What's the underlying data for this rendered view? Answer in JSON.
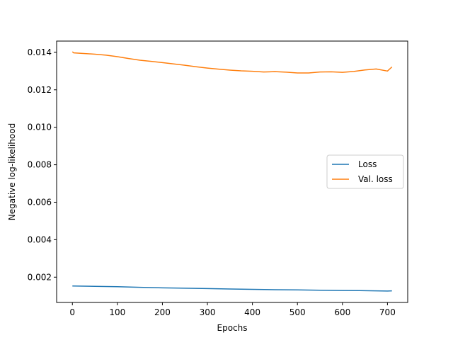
{
  "chart_data": {
    "type": "line",
    "title": "",
    "xlabel": "Epochs",
    "ylabel": "Negative log-likelihood",
    "xlim": [
      -35,
      745
    ],
    "ylim": [
      0.00065,
      0.0146
    ],
    "x_ticks": [
      0,
      100,
      200,
      300,
      400,
      500,
      600,
      700
    ],
    "x_tick_labels": [
      "0",
      "100",
      "200",
      "300",
      "400",
      "500",
      "600",
      "700"
    ],
    "y_ticks": [
      0.002,
      0.004,
      0.006,
      0.008,
      0.01,
      0.012,
      0.014
    ],
    "y_tick_labels": [
      "0.002",
      "0.004",
      "0.006",
      "0.008",
      "0.010",
      "0.012",
      "0.014"
    ],
    "grid": false,
    "legend_position": "center-right",
    "series": [
      {
        "name": "Loss",
        "color": "#1f77b4",
        "x": [
          0,
          50,
          100,
          150,
          200,
          250,
          300,
          350,
          400,
          450,
          500,
          550,
          600,
          650,
          700,
          710
        ],
        "y": [
          0.00153,
          0.00151,
          0.00149,
          0.00146,
          0.00143,
          0.00141,
          0.00139,
          0.00137,
          0.00135,
          0.00133,
          0.00132,
          0.0013,
          0.00129,
          0.00128,
          0.00126,
          0.00127
        ]
      },
      {
        "name": "Val. loss",
        "color": "#ff7f0e",
        "x": [
          0,
          3,
          25,
          50,
          75,
          100,
          125,
          150,
          175,
          200,
          225,
          250,
          275,
          300,
          325,
          350,
          375,
          400,
          425,
          450,
          475,
          500,
          525,
          550,
          575,
          600,
          625,
          650,
          675,
          700,
          710
        ],
        "y": [
          0.01403,
          0.01397,
          0.01394,
          0.0139,
          0.01385,
          0.01377,
          0.01367,
          0.01358,
          0.01352,
          0.01345,
          0.01338,
          0.01331,
          0.01323,
          0.01316,
          0.0131,
          0.01305,
          0.01301,
          0.01299,
          0.01295,
          0.01297,
          0.01294,
          0.0129,
          0.0129,
          0.01295,
          0.01296,
          0.01293,
          0.01298,
          0.01306,
          0.01311,
          0.013,
          0.01322
        ]
      }
    ]
  }
}
